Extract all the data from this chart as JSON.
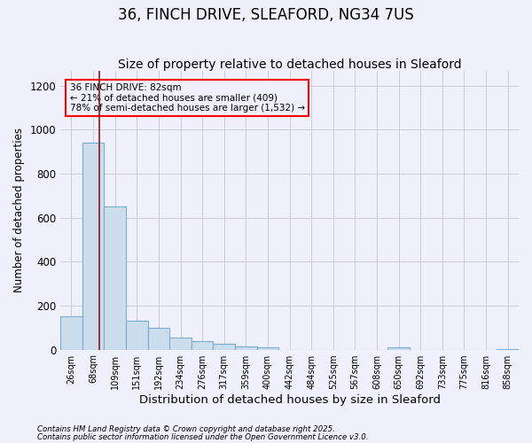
{
  "title": "36, FINCH DRIVE, SLEAFORD, NG34 7US",
  "subtitle": "Size of property relative to detached houses in Sleaford",
  "xlabel": "Distribution of detached houses by size in Sleaford",
  "ylabel": "Number of detached properties",
  "categories": [
    "26sqm",
    "68sqm",
    "109sqm",
    "151sqm",
    "192sqm",
    "234sqm",
    "276sqm",
    "317sqm",
    "359sqm",
    "400sqm",
    "442sqm",
    "484sqm",
    "525sqm",
    "567sqm",
    "608sqm",
    "650sqm",
    "692sqm",
    "733sqm",
    "775sqm",
    "816sqm",
    "858sqm"
  ],
  "values": [
    150,
    940,
    650,
    130,
    100,
    55,
    40,
    25,
    15,
    10,
    0,
    0,
    0,
    0,
    0,
    10,
    0,
    0,
    0,
    0,
    3
  ],
  "bar_color": "#ccdded",
  "bar_edge_color": "#7aadcc",
  "grid_color": "#c8cce0",
  "background_color": "#eef0fb",
  "red_line_x": 1.28,
  "annotation_text": "36 FINCH DRIVE: 82sqm\n← 21% of detached houses are smaller (409)\n78% of semi-detached houses are larger (1,532) →",
  "footer_line1": "Contains HM Land Registry data © Crown copyright and database right 2025.",
  "footer_line2": "Contains public sector information licensed under the Open Government Licence v3.0.",
  "ylim": [
    0,
    1270
  ],
  "yticks": [
    0,
    200,
    400,
    600,
    800,
    1000,
    1200
  ],
  "title_fontsize": 12,
  "subtitle_fontsize": 10,
  "xlabel_fontsize": 9.5,
  "ylabel_fontsize": 8.5
}
